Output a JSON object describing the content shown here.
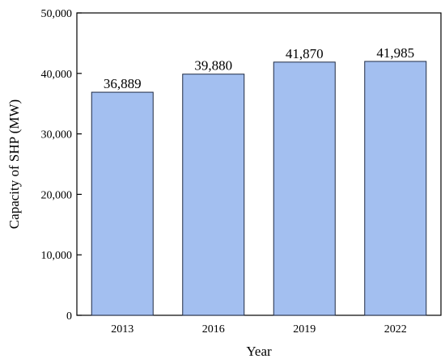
{
  "chart_data": {
    "type": "bar",
    "categories": [
      "2013",
      "2016",
      "2019",
      "2022"
    ],
    "values": [
      36889,
      39880,
      41870,
      41985
    ],
    "data_labels": [
      "36,889",
      "39,880",
      "41,870",
      "41,985"
    ],
    "title": "",
    "xlabel": "Year",
    "ylabel": "Capacity of SHP (MW)",
    "ylim": [
      0,
      50000
    ],
    "yticks": [
      0,
      10000,
      20000,
      30000,
      40000,
      50000
    ],
    "ytick_labels": [
      "0",
      "10,000",
      "20,000",
      "30,000",
      "40,000",
      "50,000"
    ],
    "grid": false,
    "legend": "none",
    "bar_color": "#a3bff0",
    "bar_edge_color": "#1f2a44"
  }
}
